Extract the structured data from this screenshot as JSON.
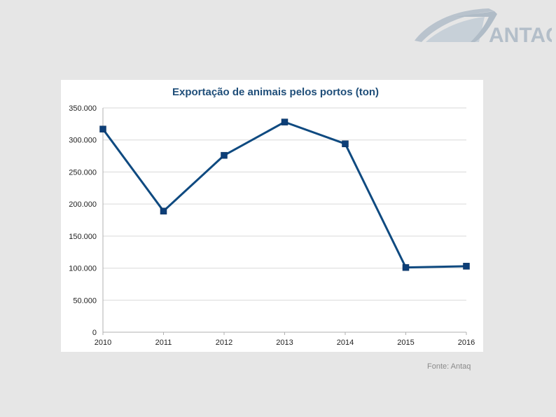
{
  "logo": {
    "text": "ANTAQ"
  },
  "source_note": "Fonte: Antaq",
  "colors": {
    "series": "#0f4a80",
    "marker": "#0d3f78",
    "grid": "#d9d9d9",
    "background": "#e6e6e6"
  },
  "chart_data": {
    "type": "line",
    "title": "Exportação de animais pelos portos (ton)",
    "xlabel": "",
    "ylabel": "",
    "categories": [
      "2010",
      "2011",
      "2012",
      "2013",
      "2014",
      "2015",
      "2016"
    ],
    "series": [
      {
        "values": [
          317000,
          189000,
          276000,
          328000,
          294000,
          101000,
          103000
        ]
      }
    ],
    "ylim": [
      0,
      350000
    ],
    "yticks": [
      0,
      50000,
      100000,
      150000,
      200000,
      250000,
      300000,
      350000
    ],
    "ytick_labels": [
      "0",
      "50.000",
      "100.000",
      "150.000",
      "200.000",
      "250.000",
      "300.000",
      "350.000"
    ],
    "grid": "horizontal",
    "legend": "none",
    "marker": "square"
  }
}
